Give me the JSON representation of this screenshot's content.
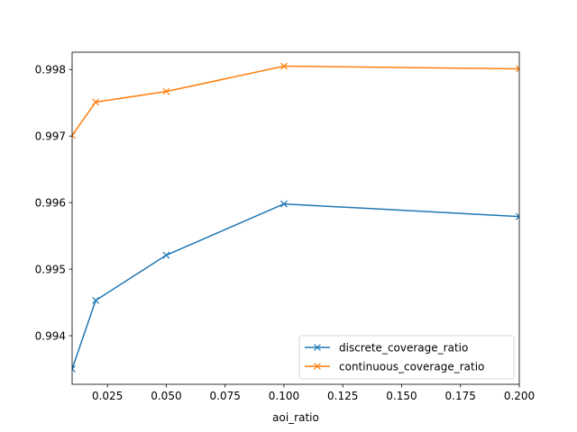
{
  "chart_data": {
    "type": "line",
    "xlabel": "aoi_ratio",
    "ylabel": "",
    "xlim": [
      0.01,
      0.2
    ],
    "ylim": [
      0.99327,
      0.99826
    ],
    "xticks": [
      0.025,
      0.05,
      0.075,
      0.1,
      0.125,
      0.15,
      0.175,
      0.2
    ],
    "xtick_labels": [
      "0.025",
      "0.050",
      "0.075",
      "0.100",
      "0.125",
      "0.150",
      "0.175",
      "0.200"
    ],
    "yticks": [
      0.994,
      0.995,
      0.996,
      0.997,
      0.998
    ],
    "ytick_labels": [
      "0.994",
      "0.995",
      "0.996",
      "0.997",
      "0.998"
    ],
    "grid": false,
    "legend_position": "lower-right",
    "series": [
      {
        "name": "discrete_coverage_ratio",
        "color": "#1f77b4",
        "marker": "x",
        "x": [
          0.01,
          0.02,
          0.05,
          0.1,
          0.2
        ],
        "y": [
          0.9935,
          0.99453,
          0.99521,
          0.99598,
          0.99579
        ]
      },
      {
        "name": "continuous_coverage_ratio",
        "color": "#ff7f0e",
        "marker": "x",
        "x": [
          0.01,
          0.02,
          0.05,
          0.1,
          0.2
        ],
        "y": [
          0.99701,
          0.99751,
          0.99767,
          0.99805,
          0.99801
        ]
      }
    ]
  }
}
